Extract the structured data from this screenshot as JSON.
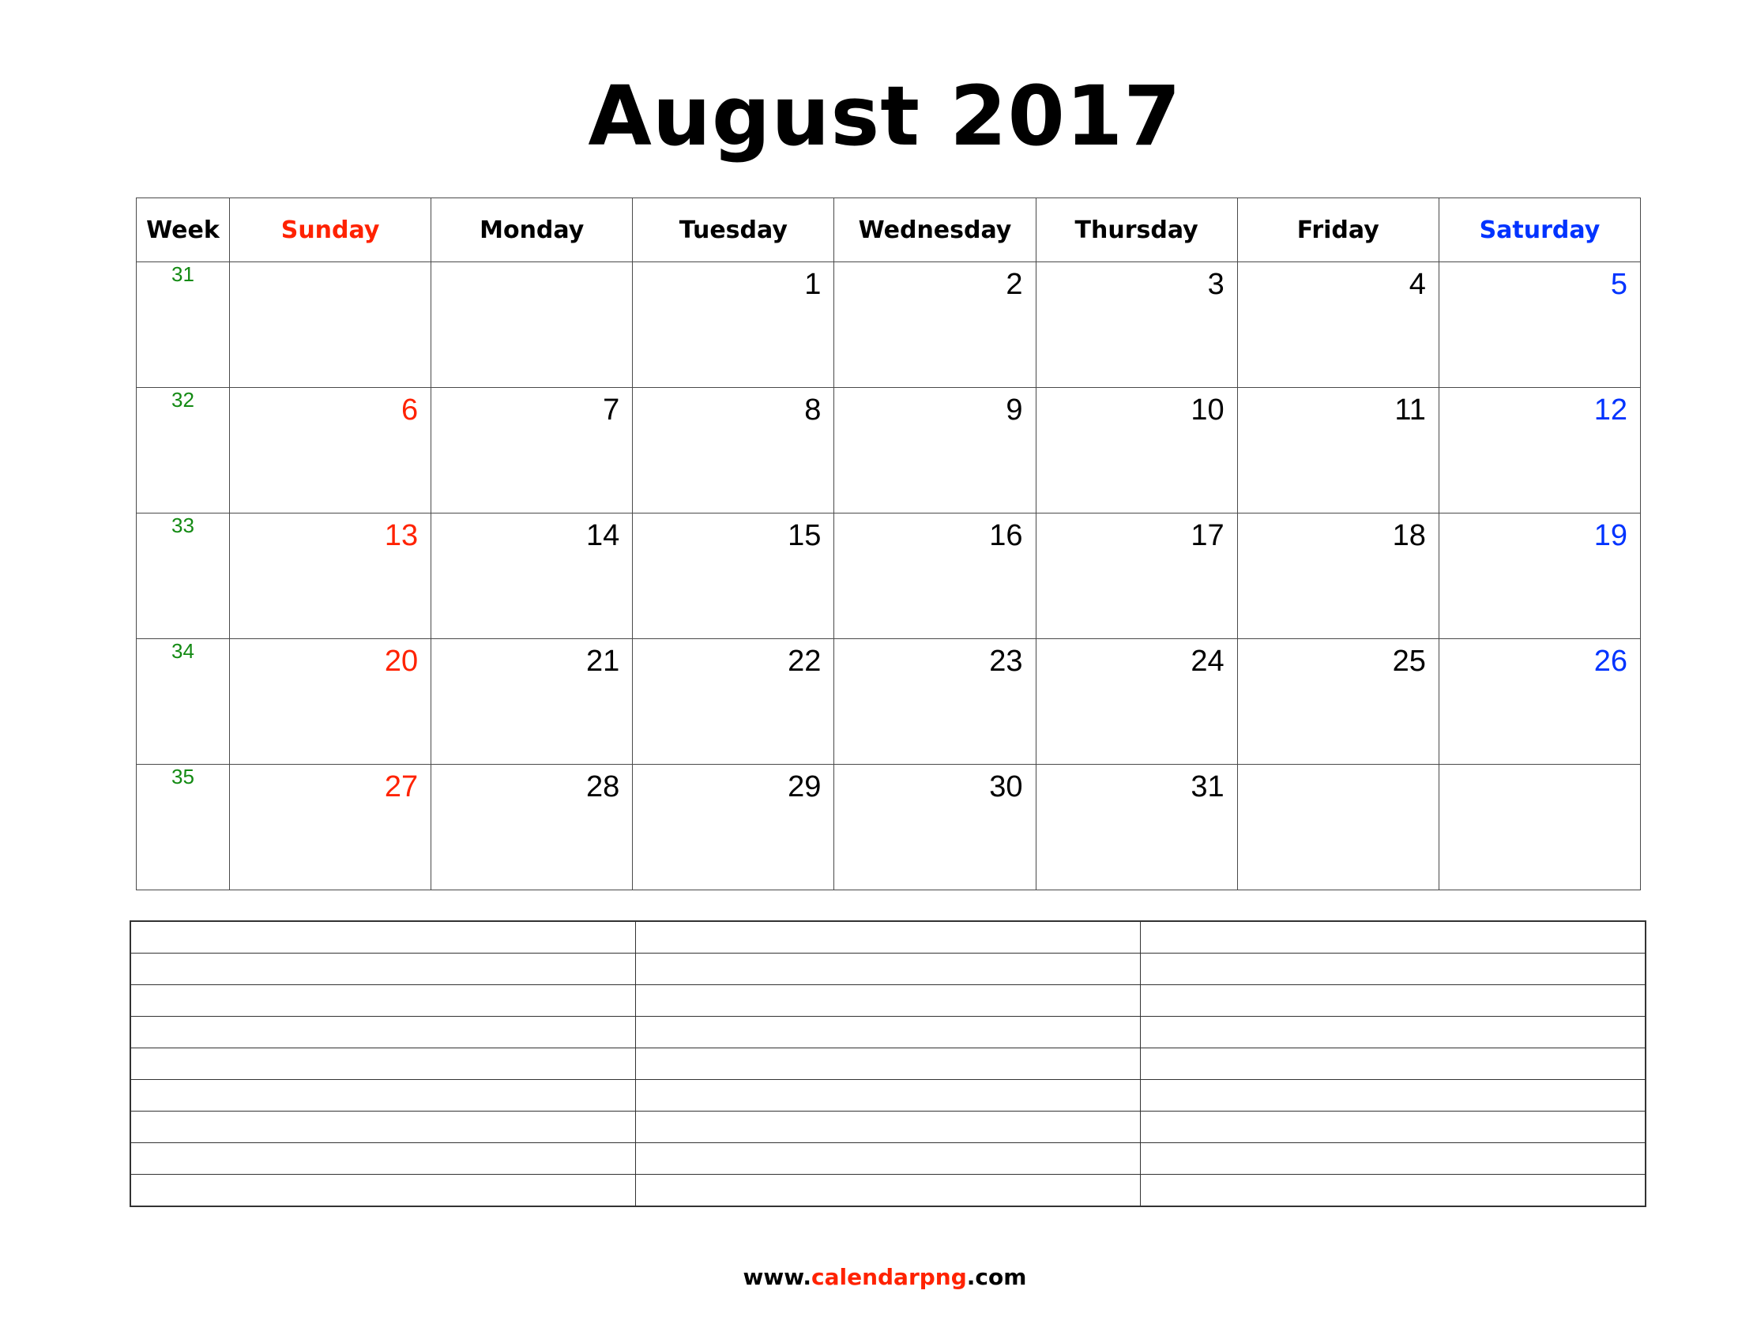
{
  "title": "August 2017",
  "headers": {
    "week": "Week",
    "days": [
      "Sunday",
      "Monday",
      "Tuesday",
      "Wednesday",
      "Thursday",
      "Friday",
      "Saturday"
    ]
  },
  "colors": {
    "sunday": "#ff2200",
    "saturday": "#0033ff",
    "week_number": "#138a13"
  },
  "weeks": [
    {
      "number": "31",
      "days": [
        "",
        "",
        "1",
        "2",
        "3",
        "4",
        "5"
      ]
    },
    {
      "number": "32",
      "days": [
        "6",
        "7",
        "8",
        "9",
        "10",
        "11",
        "12"
      ]
    },
    {
      "number": "33",
      "days": [
        "13",
        "14",
        "15",
        "16",
        "17",
        "18",
        "19"
      ]
    },
    {
      "number": "34",
      "days": [
        "20",
        "21",
        "22",
        "23",
        "24",
        "25",
        "26"
      ]
    },
    {
      "number": "35",
      "days": [
        "27",
        "28",
        "29",
        "30",
        "31",
        "",
        ""
      ]
    }
  ],
  "notes": {
    "rows": 9,
    "columns": 3
  },
  "footer": {
    "prefix": "www.",
    "brand": "calendarpng",
    "suffix": ".com"
  }
}
